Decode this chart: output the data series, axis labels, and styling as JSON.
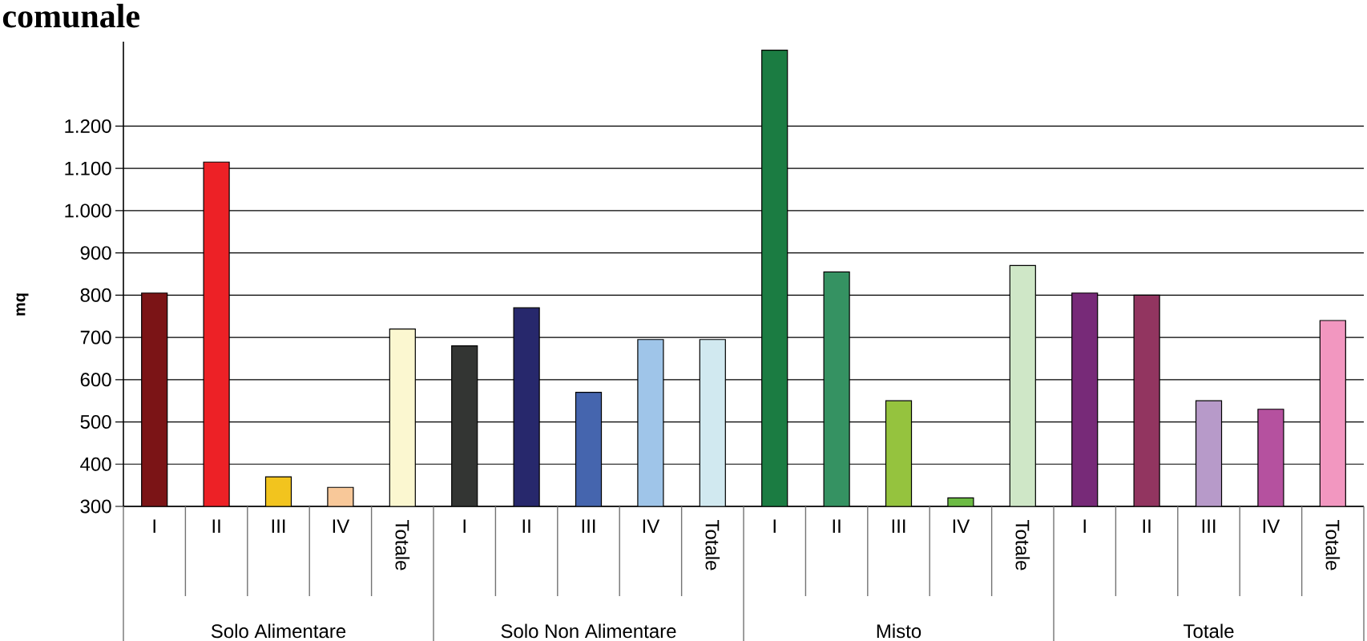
{
  "chart_data": {
    "type": "bar",
    "title": "comunale",
    "ylabel": "mq",
    "categories": [
      "I",
      "II",
      "III",
      "IV",
      "Totale",
      "I",
      "II",
      "III",
      "IV",
      "Totale",
      "I",
      "II",
      "III",
      "IV",
      "Totale",
      "I",
      "II",
      "III",
      "IV",
      "Totale"
    ],
    "values": [
      805,
      1115,
      370,
      345,
      720,
      680,
      770,
      570,
      695,
      695,
      1380,
      855,
      550,
      320,
      870,
      805,
      800,
      550,
      530,
      740
    ],
    "colors": [
      "#7b1416",
      "#ed2126",
      "#f2c41e",
      "#f8c899",
      "#fbf7d0",
      "#333533",
      "#27286c",
      "#4565ae",
      "#9fc5e9",
      "#d1e9f0",
      "#1b7c42",
      "#359262",
      "#95c33e",
      "#6cbb44",
      "#cfe7c7",
      "#772a78",
      "#923560",
      "#b79ac9",
      "#b5519f",
      "#f297c0"
    ],
    "annotations": [
      "Solo Alimentare",
      "Solo Non Alimentare",
      "Misto",
      "Totale"
    ],
    "ylim": [
      300,
      1400
    ],
    "yticks": [
      300,
      400,
      500,
      600,
      700,
      800,
      900,
      {
        "value": 1000,
        "label": "1.000"
      },
      {
        "value": 1100,
        "label": "1.100"
      },
      {
        "value": 1200,
        "label": "1.200"
      }
    ],
    "grid": "y"
  }
}
